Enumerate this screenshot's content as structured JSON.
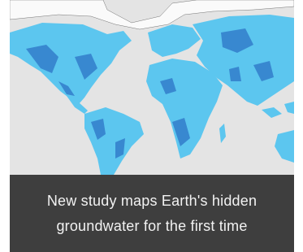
{
  "caption": "New study maps Earth's hidden groundwater for the first time"
}
